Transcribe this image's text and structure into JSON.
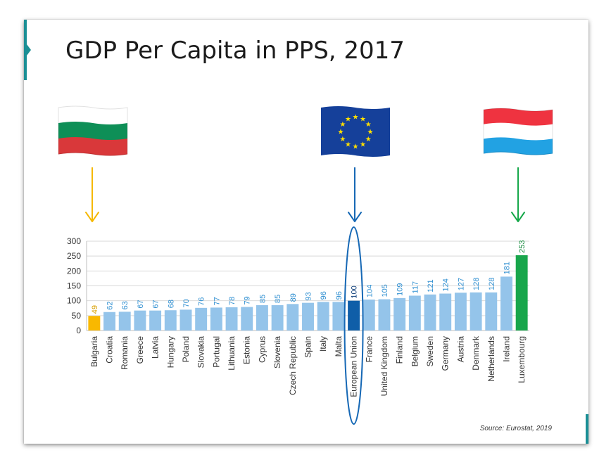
{
  "title": "GDP Per Capita in PPS, 2017",
  "source": "Source: Eurostat, 2019",
  "colors": {
    "bar_default": "#94c4ea",
    "bar_low": "#f9b800",
    "bar_eu": "#0f5ea8",
    "bar_high": "#18a64b",
    "label_default": "#2f8fd1",
    "label_low": "#d9a000",
    "label_eu": "#0f3f7a",
    "label_high": "#128a3b",
    "arrow_low": "#f5b800",
    "arrow_eu": "#1668b5",
    "arrow_high": "#16a84a"
  },
  "flags": [
    {
      "name": "bulgaria-flag-icon",
      "stripes": [
        "#ffffff",
        "#0e8f57",
        "#d9383a"
      ]
    },
    {
      "name": "eu-flag-icon",
      "field": "#15409a",
      "star": "#ffdf00"
    },
    {
      "name": "luxembourg-flag-icon",
      "stripes": [
        "#ef3340",
        "#ffffff",
        "#22a2e3"
      ]
    }
  ],
  "chart_data": {
    "type": "bar",
    "title": "GDP Per Capita in PPS, 2017",
    "ylim": [
      0,
      300
    ],
    "yticks": [
      0,
      50,
      100,
      150,
      200,
      250,
      300
    ],
    "grid": true,
    "categories": [
      "Bulgaria",
      "Croatia",
      "Romania",
      "Greece",
      "Latvia",
      "Hungary",
      "Poland",
      "Slovakia",
      "Portugal",
      "Lithuania",
      "Estonia",
      "Cyprus",
      "Slovenia",
      "Czech Republic",
      "Spain",
      "Italy",
      "Malta",
      "European Union",
      "France",
      "United Kingdom",
      "Finland",
      "Belgium",
      "Sweden",
      "Germany",
      "Austria",
      "Denmark",
      "Netherlands",
      "Ireland",
      "Luxembourg"
    ],
    "values": [
      49,
      62,
      63,
      67,
      67,
      68,
      70,
      76,
      77,
      78,
      79,
      85,
      85,
      89,
      93,
      96,
      96,
      100,
      104,
      105,
      109,
      117,
      121,
      124,
      127,
      128,
      128,
      181,
      253
    ],
    "highlight": {
      "low": "Bulgaria",
      "eu": "European Union",
      "high": "Luxembourg"
    }
  }
}
